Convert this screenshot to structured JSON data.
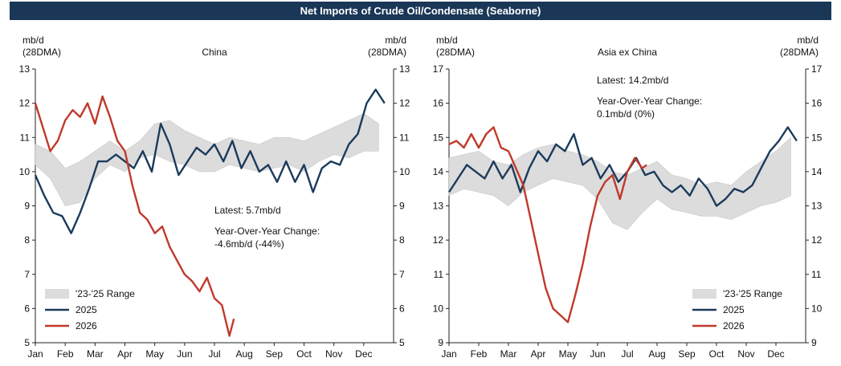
{
  "banner_title": "Net Imports of Crude Oil/Condensate (Seaborne)",
  "colors": {
    "banner": "#1b3757",
    "range": "#dcdcdc",
    "s2025": "#1b3a5c",
    "s2026": "#c0392b"
  },
  "chart_data": [
    {
      "type": "line",
      "title": "China",
      "ylabel_left": "mb/d\n(28DMA)",
      "ylabel_right": "mb/d\n(28DMA)",
      "ylim": [
        5,
        13
      ],
      "yticks": [
        5,
        6,
        7,
        8,
        9,
        10,
        11,
        12,
        13
      ],
      "x_tick_labels": [
        "Jan",
        "Feb",
        "Mar",
        "Apr",
        "May",
        "Jun",
        "Jul",
        "Aug",
        "Sep",
        "Oct",
        "Nov",
        "Dec"
      ],
      "legend": {
        "placement": "bottom-left",
        "entries": [
          "'23-'25 Range",
          "2025",
          "2026"
        ]
      },
      "annotation": {
        "lines": [
          "Latest: 5.7mb/d",
          "Year-Over-Year Change:",
          "-4.6mb/d (-44%)"
        ]
      },
      "range_band": {
        "name": "'23-'25 Range",
        "x": [
          0,
          0.5,
          1,
          1.5,
          2,
          2.5,
          3,
          3.5,
          4,
          4.5,
          5,
          5.5,
          6,
          6.5,
          7,
          7.5,
          8,
          8.5,
          9,
          9.5,
          10,
          10.5,
          11,
          11.5
        ],
        "low": [
          10.2,
          9.8,
          9.0,
          9.1,
          9.8,
          10.2,
          10.0,
          10.4,
          10.5,
          10.3,
          10.2,
          10.0,
          10.0,
          10.2,
          10.1,
          10.0,
          10.1,
          10.2,
          10.0,
          10.3,
          10.5,
          10.4,
          10.6,
          10.6
        ],
        "high": [
          10.8,
          10.6,
          10.1,
          10.3,
          10.6,
          10.9,
          10.6,
          10.9,
          11.4,
          11.5,
          11.2,
          11.0,
          10.8,
          11.0,
          10.9,
          10.8,
          11.0,
          11.0,
          10.9,
          11.1,
          11.3,
          11.5,
          11.7,
          11.4
        ]
      },
      "series": [
        {
          "name": "2025",
          "x": [
            0,
            0.3,
            0.6,
            0.9,
            1.2,
            1.5,
            1.8,
            2.1,
            2.4,
            2.7,
            3.0,
            3.3,
            3.6,
            3.9,
            4.2,
            4.5,
            4.8,
            5.1,
            5.4,
            5.7,
            6.0,
            6.3,
            6.6,
            6.9,
            7.2,
            7.5,
            7.8,
            8.1,
            8.4,
            8.7,
            9.0,
            9.3,
            9.6,
            9.9,
            10.2,
            10.5,
            10.8,
            11.1,
            11.4,
            11.7
          ],
          "values": [
            9.9,
            9.3,
            8.8,
            8.7,
            8.2,
            8.8,
            9.5,
            10.3,
            10.3,
            10.5,
            10.3,
            10.1,
            10.6,
            10.0,
            11.4,
            10.8,
            9.9,
            10.3,
            10.7,
            10.5,
            10.8,
            10.3,
            10.9,
            10.1,
            10.6,
            10.0,
            10.2,
            9.7,
            10.3,
            9.7,
            10.2,
            9.4,
            10.1,
            10.3,
            10.2,
            10.8,
            11.1,
            12.0,
            12.4,
            12.0
          ]
        },
        {
          "name": "2026",
          "x": [
            0,
            0.25,
            0.5,
            0.75,
            1.0,
            1.25,
            1.5,
            1.75,
            2.0,
            2.25,
            2.5,
            2.75,
            3.0,
            3.25,
            3.5,
            3.75,
            4.0,
            4.25,
            4.5,
            4.75,
            5.0,
            5.25,
            5.5,
            5.75,
            6.0,
            6.25,
            6.5,
            6.65
          ],
          "values": [
            12.0,
            11.3,
            10.6,
            10.9,
            11.5,
            11.8,
            11.6,
            12.0,
            11.4,
            12.2,
            11.6,
            10.9,
            10.6,
            9.6,
            8.8,
            8.6,
            8.2,
            8.4,
            7.8,
            7.4,
            7.0,
            6.8,
            6.5,
            6.9,
            6.3,
            6.1,
            5.2,
            5.7
          ]
        }
      ]
    },
    {
      "type": "line",
      "title": "Asia ex China",
      "ylabel_left": "mb/d\n(28DMA)",
      "ylabel_right": "mb/d\n(28DMA)",
      "ylim": [
        9,
        17
      ],
      "yticks": [
        9,
        10,
        11,
        12,
        13,
        14,
        15,
        16,
        17
      ],
      "x_tick_labels": [
        "Jan",
        "Feb",
        "Mar",
        "Apr",
        "May",
        "Jun",
        "Jul",
        "Aug",
        "Sep",
        "Oct",
        "Nov",
        "Dec"
      ],
      "legend": {
        "placement": "bottom-right",
        "entries": [
          "'23-'25 Range",
          "2025",
          "2026"
        ]
      },
      "annotation": {
        "lines": [
          "Latest: 14.2mb/d",
          "Year-Over-Year Change:",
          "0.1mb/d (0%)"
        ]
      },
      "range_band": {
        "name": "'23-'25 Range",
        "x": [
          0,
          0.5,
          1,
          1.5,
          2,
          2.5,
          3,
          3.5,
          4,
          4.5,
          5,
          5.5,
          6,
          6.5,
          7,
          7.5,
          8,
          8.5,
          9,
          9.5,
          10,
          10.5,
          11,
          11.5
        ],
        "low": [
          13.3,
          13.5,
          13.4,
          13.3,
          13.0,
          13.4,
          13.6,
          13.8,
          13.7,
          13.6,
          13.2,
          12.5,
          12.3,
          12.8,
          13.2,
          12.9,
          12.8,
          12.7,
          12.7,
          12.6,
          12.8,
          13.0,
          13.1,
          13.3
        ],
        "high": [
          14.4,
          14.5,
          14.6,
          14.3,
          14.2,
          14.5,
          14.7,
          14.8,
          14.6,
          14.5,
          14.3,
          14.0,
          13.9,
          14.1,
          14.3,
          13.9,
          13.8,
          13.6,
          13.7,
          13.6,
          14.0,
          14.3,
          14.6,
          15.0
        ]
      },
      "series": [
        {
          "name": "2025",
          "x": [
            0,
            0.3,
            0.6,
            0.9,
            1.2,
            1.5,
            1.8,
            2.1,
            2.4,
            2.7,
            3.0,
            3.3,
            3.6,
            3.9,
            4.2,
            4.5,
            4.8,
            5.1,
            5.4,
            5.7,
            6.0,
            6.3,
            6.6,
            6.9,
            7.2,
            7.5,
            7.8,
            8.1,
            8.4,
            8.7,
            9.0,
            9.3,
            9.6,
            9.9,
            10.2,
            10.5,
            10.8,
            11.1,
            11.4,
            11.7
          ],
          "values": [
            13.4,
            13.8,
            14.2,
            14.0,
            13.8,
            14.3,
            13.8,
            14.2,
            13.4,
            14.1,
            14.6,
            14.3,
            14.8,
            14.6,
            15.1,
            14.2,
            14.4,
            13.8,
            14.2,
            13.7,
            14.0,
            14.4,
            13.9,
            14.0,
            13.6,
            13.4,
            13.6,
            13.3,
            13.8,
            13.5,
            13.0,
            13.2,
            13.5,
            13.4,
            13.6,
            14.1,
            14.6,
            14.9,
            15.3,
            14.9
          ]
        },
        {
          "name": "2026",
          "x": [
            0,
            0.25,
            0.5,
            0.75,
            1.0,
            1.25,
            1.5,
            1.75,
            2.0,
            2.25,
            2.5,
            2.75,
            3.0,
            3.25,
            3.5,
            3.75,
            4.0,
            4.25,
            4.5,
            4.75,
            5.0,
            5.25,
            5.5,
            5.75,
            6.0,
            6.25,
            6.5,
            6.65
          ],
          "values": [
            14.8,
            14.9,
            14.7,
            15.1,
            14.7,
            15.1,
            15.3,
            14.7,
            14.6,
            14.1,
            13.6,
            12.6,
            11.6,
            10.6,
            10.0,
            9.8,
            9.6,
            10.4,
            11.3,
            12.4,
            13.3,
            13.7,
            13.9,
            13.2,
            14.0,
            14.4,
            14.1,
            14.2
          ]
        }
      ]
    }
  ]
}
